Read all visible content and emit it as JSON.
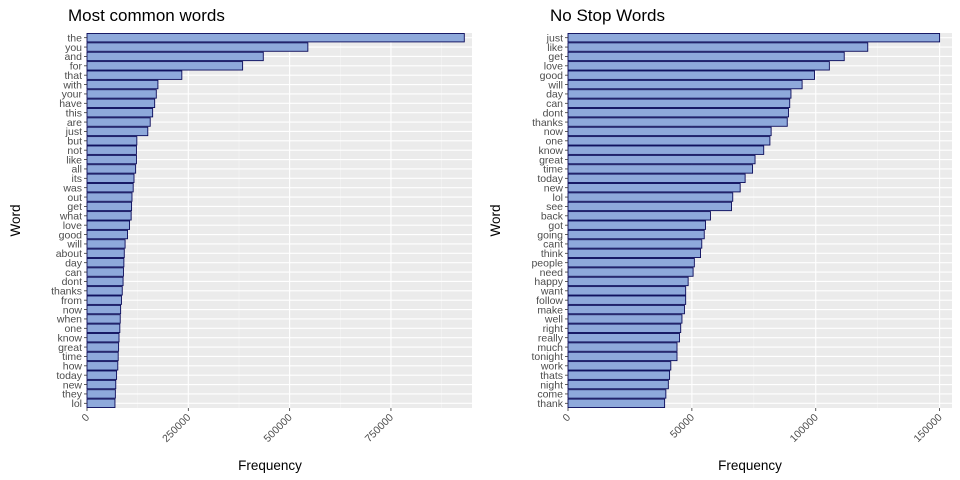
{
  "colors": {
    "panel_bg": "#ebebeb",
    "grid_major": "#ffffff",
    "grid_minor": "#f5f5f5",
    "bar_fill": "#8ea9db",
    "bar_stroke": "#0a0a5a",
    "tick_text": "#4d4d4d"
  },
  "chart_data": [
    {
      "type": "bar",
      "orientation": "horizontal",
      "title": "Most common words",
      "xlabel": "Frequency",
      "ylabel": "Word",
      "xlim": [
        0,
        950000
      ],
      "xticks": [
        0,
        250000,
        500000,
        750000
      ],
      "xtick_labels": [
        "0",
        "250000",
        "500000",
        "750000"
      ],
      "categories": [
        "the",
        "you",
        "and",
        "for",
        "that",
        "with",
        "your",
        "have",
        "this",
        "are",
        "just",
        "but",
        "not",
        "like",
        "all",
        "its",
        "was",
        "out",
        "get",
        "what",
        "love",
        "good",
        "will",
        "about",
        "day",
        "can",
        "dont",
        "thanks",
        "from",
        "now",
        "when",
        "one",
        "know",
        "great",
        "time",
        "how",
        "today",
        "new",
        "they",
        "lol"
      ],
      "values": [
        931000,
        545000,
        435000,
        384000,
        234000,
        175000,
        171000,
        167000,
        162000,
        156000,
        150000,
        123000,
        122000,
        122000,
        120000,
        116000,
        114000,
        111000,
        110000,
        109000,
        105000,
        100000,
        94000,
        92000,
        91000,
        90000,
        89000,
        87000,
        85000,
        83000,
        82000,
        81000,
        79000,
        78000,
        77000,
        76000,
        73000,
        71000,
        70000,
        69000
      ]
    },
    {
      "type": "bar",
      "orientation": "horizontal",
      "title": "No Stop Words",
      "xlabel": "Frequency",
      "ylabel": "Word",
      "xlim": [
        0,
        155000
      ],
      "xticks": [
        0,
        50000,
        100000,
        150000
      ],
      "xtick_labels": [
        "0",
        "50000",
        "100000",
        "150000"
      ],
      "categories": [
        "just",
        "like",
        "get",
        "love",
        "good",
        "will",
        "day",
        "can",
        "dont",
        "thanks",
        "now",
        "one",
        "know",
        "great",
        "time",
        "today",
        "new",
        "lol",
        "see",
        "back",
        "got",
        "going",
        "cant",
        "think",
        "people",
        "need",
        "happy",
        "want",
        "follow",
        "make",
        "well",
        "right",
        "really",
        "much",
        "tonight",
        "work",
        "thats",
        "night",
        "come",
        "thank"
      ],
      "values": [
        150000,
        121000,
        111500,
        105500,
        99500,
        94500,
        90000,
        89500,
        89000,
        88500,
        82000,
        81500,
        79000,
        75500,
        74500,
        71500,
        69500,
        66500,
        66000,
        57500,
        55500,
        55000,
        54000,
        53500,
        51000,
        50500,
        48500,
        47500,
        47500,
        47000,
        46000,
        45500,
        45000,
        44000,
        44000,
        41500,
        41000,
        40500,
        39500,
        39000
      ]
    }
  ]
}
